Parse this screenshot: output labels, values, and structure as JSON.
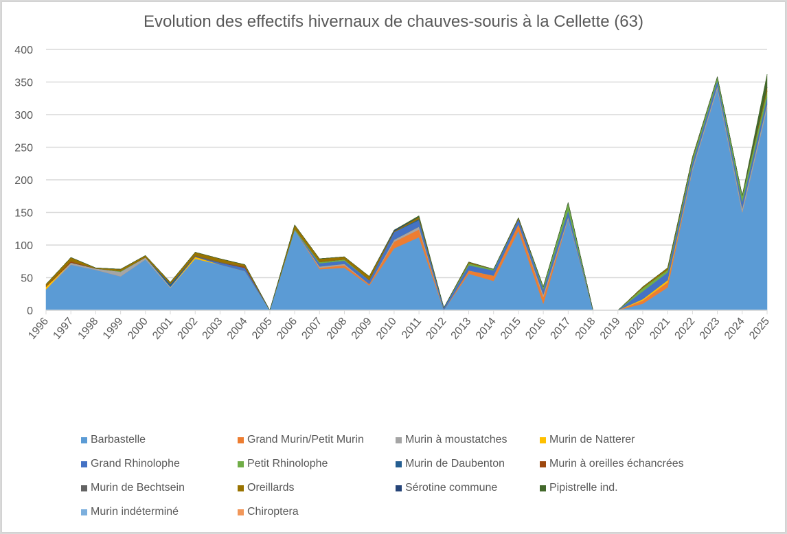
{
  "chart_data": {
    "type": "area",
    "stacked": true,
    "title": "Evolution des effectifs hivernaux de chauves-souris à la Cellette (63)",
    "xlabel": "",
    "ylabel": "",
    "ylim": [
      0,
      400
    ],
    "yticks": [
      "0",
      "50",
      "100",
      "150",
      "200",
      "250",
      "300",
      "350",
      "400"
    ],
    "ytick_values": [
      0,
      50,
      100,
      150,
      200,
      250,
      300,
      350,
      400
    ],
    "grid": true,
    "legend_position": "bottom",
    "categories": [
      "1996",
      "1997",
      "1998",
      "1999",
      "2000",
      "2001",
      "2002",
      "2003",
      "2004",
      "2005",
      "2006",
      "2007",
      "2008",
      "2009",
      "2010",
      "2011",
      "2012",
      "2013",
      "2014",
      "2015",
      "2016",
      "2017",
      "2018",
      "2019",
      "2020",
      "2021",
      "2022",
      "2023",
      "2024",
      "2025"
    ],
    "series": [
      {
        "name": "Barbastelle",
        "color": "#5b9bd5",
        "values": [
          32,
          70,
          62,
          52,
          78,
          34,
          79,
          70,
          60,
          0,
          123,
          63,
          65,
          38,
          95,
          112,
          0,
          56,
          45,
          122,
          10,
          140,
          0,
          0,
          10,
          35,
          215,
          340,
          150,
          310
        ]
      },
      {
        "name": "Grand Murin/Petit Murin",
        "color": "#ed7d31",
        "values": [
          0,
          0,
          0,
          0,
          0,
          0,
          0,
          0,
          0,
          0,
          0,
          2,
          4,
          2,
          10,
          12,
          0,
          5,
          8,
          10,
          10,
          0,
          0,
          0,
          5,
          8,
          0,
          0,
          0,
          0
        ]
      },
      {
        "name": "Murin à moustatches",
        "color": "#a5a5a5",
        "values": [
          0,
          3,
          2,
          7,
          3,
          2,
          0,
          0,
          0,
          0,
          0,
          2,
          2,
          0,
          3,
          4,
          0,
          0,
          0,
          0,
          4,
          3,
          0,
          0,
          0,
          0,
          4,
          4,
          6,
          6
        ]
      },
      {
        "name": "Murin de Natterer",
        "color": "#ffc000",
        "values": [
          4,
          0,
          0,
          0,
          0,
          0,
          3,
          0,
          0,
          0,
          0,
          0,
          0,
          0,
          0,
          0,
          0,
          0,
          0,
          0,
          0,
          0,
          0,
          0,
          2,
          3,
          0,
          0,
          0,
          0
        ]
      },
      {
        "name": "Grand Rhinolophe",
        "color": "#4472c4",
        "values": [
          0,
          0,
          0,
          0,
          0,
          0,
          0,
          3,
          5,
          0,
          0,
          5,
          5,
          6,
          12,
          10,
          4,
          8,
          8,
          8,
          8,
          10,
          0,
          0,
          12,
          12,
          8,
          8,
          10,
          10
        ]
      },
      {
        "name": "Petit Rhinolophe",
        "color": "#70ad47",
        "values": [
          0,
          0,
          0,
          1,
          0,
          0,
          0,
          0,
          0,
          0,
          2,
          2,
          2,
          0,
          0,
          0,
          0,
          3,
          2,
          0,
          4,
          12,
          0,
          0,
          5,
          4,
          6,
          6,
          10,
          10
        ]
      },
      {
        "name": "Murin de Daubenton",
        "color": "#255e91",
        "values": [
          0,
          0,
          0,
          0,
          0,
          4,
          0,
          0,
          0,
          0,
          0,
          0,
          0,
          0,
          0,
          2,
          0,
          0,
          0,
          0,
          0,
          0,
          0,
          0,
          0,
          0,
          0,
          0,
          0,
          0
        ]
      },
      {
        "name": "Murin à oreilles échancrées",
        "color": "#9e480e",
        "values": [
          1,
          2,
          0,
          0,
          0,
          0,
          0,
          0,
          2,
          0,
          0,
          0,
          0,
          0,
          0,
          0,
          0,
          0,
          0,
          0,
          0,
          0,
          0,
          0,
          0,
          0,
          0,
          0,
          0,
          0
        ]
      },
      {
        "name": "Murin de Bechtsein",
        "color": "#636363",
        "values": [
          0,
          0,
          0,
          0,
          0,
          0,
          2,
          1,
          0,
          0,
          0,
          0,
          0,
          0,
          0,
          0,
          0,
          0,
          0,
          0,
          0,
          0,
          0,
          0,
          0,
          0,
          0,
          0,
          0,
          0
        ]
      },
      {
        "name": "Oreillards",
        "color": "#997300",
        "values": [
          3,
          6,
          1,
          3,
          3,
          3,
          5,
          5,
          3,
          0,
          6,
          5,
          4,
          6,
          1,
          3,
          0,
          2,
          0,
          2,
          0,
          0,
          0,
          0,
          2,
          3,
          2,
          0,
          0,
          6
        ]
      },
      {
        "name": "Sérotine commune",
        "color": "#264478",
        "values": [
          0,
          0,
          0,
          0,
          0,
          0,
          0,
          0,
          0,
          0,
          0,
          0,
          0,
          0,
          2,
          0,
          0,
          0,
          0,
          0,
          0,
          0,
          0,
          0,
          0,
          0,
          0,
          0,
          0,
          0
        ]
      },
      {
        "name": "Pipistrelle ind.",
        "color": "#43682b",
        "values": [
          0,
          0,
          0,
          0,
          0,
          0,
          0,
          0,
          0,
          0,
          0,
          0,
          0,
          0,
          0,
          2,
          0,
          0,
          0,
          0,
          0,
          0,
          0,
          0,
          0,
          0,
          0,
          0,
          0,
          20
        ]
      },
      {
        "name": "Murin indéterminé",
        "color": "#7cafdd",
        "values": [
          0,
          0,
          0,
          0,
          0,
          0,
          0,
          0,
          0,
          0,
          0,
          0,
          0,
          0,
          0,
          0,
          0,
          0,
          0,
          0,
          0,
          0,
          0,
          0,
          0,
          0,
          0,
          0,
          0,
          0
        ]
      },
      {
        "name": "Chiroptera",
        "color": "#f1975a",
        "values": [
          0,
          0,
          0,
          0,
          0,
          0,
          0,
          0,
          0,
          0,
          0,
          0,
          0,
          0,
          0,
          0,
          0,
          0,
          0,
          0,
          0,
          0,
          0,
          0,
          0,
          0,
          0,
          0,
          0,
          0
        ]
      }
    ]
  }
}
